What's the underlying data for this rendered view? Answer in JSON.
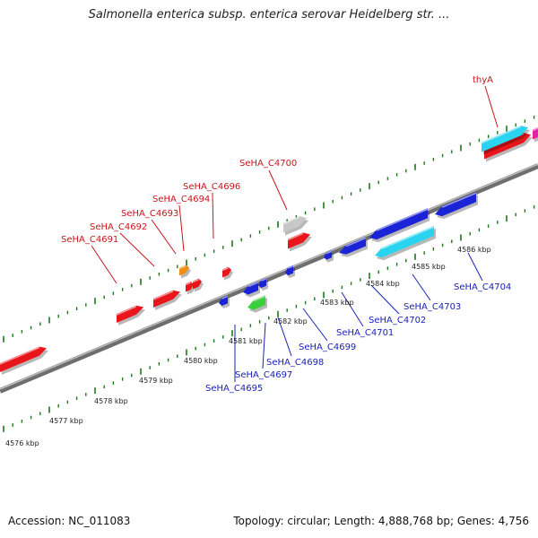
{
  "title": "Salmonella enterica subsp. enterica serovar Heidelberg str. ...",
  "footer": {
    "accession": "Accession: NC_011083",
    "topology": "Topology: circular; Length: 4,888,768 bp; Genes: 4,756"
  },
  "colors": {
    "forward_gene": "#e8151b",
    "reverse_gene": "#1a23d6",
    "rna": "#2ad4f0",
    "pseudo": "#f08c10",
    "other": "#c8c8c8",
    "green": "#3ccf3c",
    "magenta": "#e81ea8",
    "forward_label": "#c8161c",
    "reverse_label": "#1a23b8",
    "backbone": "#8c8c8c",
    "ticks": "#1a7a1a"
  },
  "kbp_labels": [
    "4576 kbp",
    "4577 kbp",
    "4578 kbp",
    "4579 kbp",
    "4580 kbp",
    "4581 kbp",
    "4582 kbp",
    "4583 kbp",
    "4584 kbp",
    "4585 kbp",
    "4586 kbp"
  ],
  "forward_labels": [
    "SeHA_C4691",
    "SeHA_C4692",
    "SeHA_C4693",
    "SeHA_C4694",
    "SeHA_C4696",
    "SeHA_C4700",
    "thyA"
  ],
  "reverse_labels": [
    "SeHA_C4695",
    "SeHA_C4697",
    "SeHA_C4698",
    "SeHA_C4699",
    "SeHA_C4701",
    "SeHA_C4702",
    "SeHA_C4703",
    "SeHA_C4704"
  ]
}
